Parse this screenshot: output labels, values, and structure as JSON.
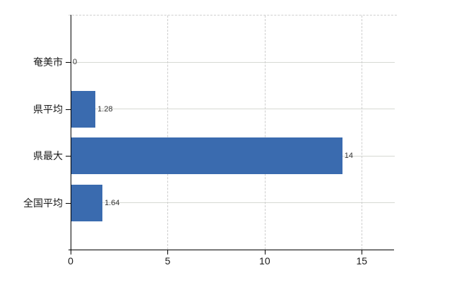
{
  "chart_data": {
    "type": "bar",
    "orientation": "horizontal",
    "title": "",
    "categories": [
      "奄美市",
      "県平均",
      "県最大",
      "全国平均"
    ],
    "values": [
      0,
      1.28,
      14,
      1.64
    ],
    "value_labels": [
      "0",
      "1.28",
      "14",
      "1.64"
    ],
    "x_tick_labels": [
      "0",
      "5",
      "10",
      "15"
    ],
    "x_tick_values": [
      0,
      5,
      10,
      15
    ],
    "xlim": [
      0,
      16.7
    ],
    "grid": true,
    "legend": "none",
    "colors": {
      "bar": "#3a6baf",
      "axis": "#000000",
      "gridline_horizontal": "#d6d9d3",
      "gridline_vertical": "#cdcdcd",
      "top_border": "#cfcfcf",
      "category_text": "#1a1a1a",
      "tick_text": "#1a1a1a",
      "value_text": "#333333",
      "background": "#ffffff"
    }
  }
}
